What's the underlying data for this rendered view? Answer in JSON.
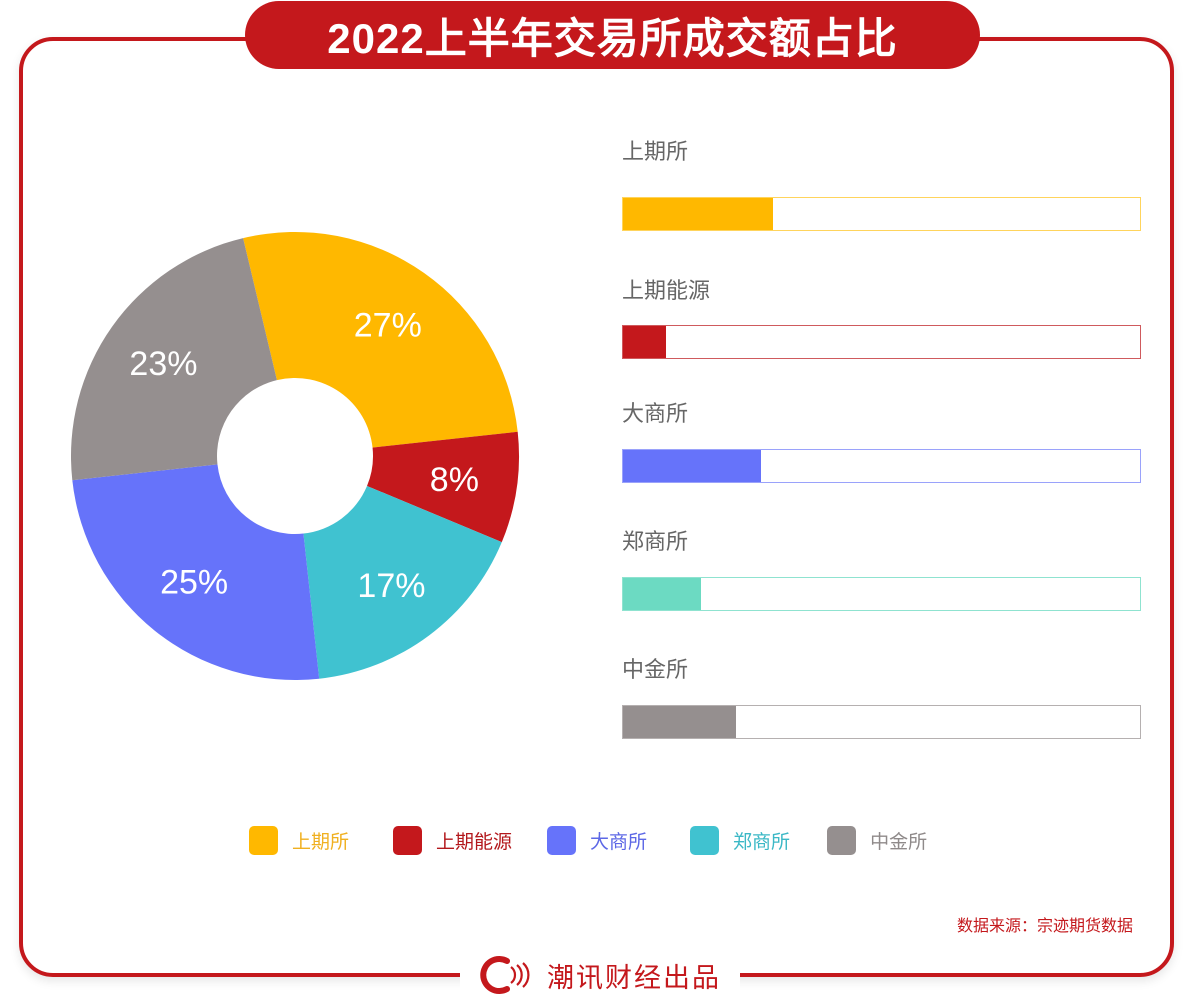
{
  "header": {
    "title": "2022上半年交易所成交额占比"
  },
  "colors": {
    "accent": "#c4181c",
    "shfe": "#ffb800",
    "ine": "#c4181c",
    "dce": "#6673fa",
    "czce_pie": "#40c2d0",
    "czce_bar": "#6cdac2",
    "cffex": "#958f8f"
  },
  "chart_data": [
    {
      "type": "pie",
      "subtype": "donut",
      "title": "2022上半年交易所成交额占比",
      "categories": [
        "上期所",
        "上期能源",
        "郑商所",
        "大商所",
        "中金所"
      ],
      "values": [
        27,
        8,
        17,
        25,
        23
      ],
      "labels": [
        "27%",
        "8%",
        "17%",
        "25%",
        "23%"
      ],
      "colors": [
        "#ffb800",
        "#c4181c",
        "#40c2d0",
        "#6673fa",
        "#958f8f"
      ],
      "start_angle_deg": -13.4,
      "direction": "clockwise",
      "legend_position": "bottom"
    },
    {
      "type": "bar",
      "orientation": "horizontal",
      "categories": [
        "上期所",
        "上期能源",
        "大商所",
        "郑商所",
        "中金所"
      ],
      "values": [
        29,
        8,
        27,
        15,
        22
      ],
      "xlim": [
        0,
        100
      ],
      "colors": [
        "#ffb800",
        "#c4181c",
        "#6673fa",
        "#6cdac2",
        "#958f8f"
      ]
    }
  ],
  "donut": {
    "slices": [
      {
        "name": "上期所",
        "value": 27,
        "label": "27%",
        "color": "#ffb800"
      },
      {
        "name": "上期能源",
        "value": 8,
        "label": "8%",
        "color": "#c4181c"
      },
      {
        "name": "郑商所",
        "value": 17,
        "label": "17%",
        "color": "#40c2d0"
      },
      {
        "name": "大商所",
        "value": 25,
        "label": "25%",
        "color": "#6673fa"
      },
      {
        "name": "中金所",
        "value": 23,
        "label": "23%",
        "color": "#958f8f"
      }
    ]
  },
  "bars": [
    {
      "label": "上期所",
      "fill_pct": 29,
      "color": "#ffb800",
      "border": "#ffd45c"
    },
    {
      "label": "上期能源",
      "fill_pct": 8.3,
      "color": "#c4181c",
      "border": "#cf5a5d"
    },
    {
      "label": "大商所",
      "fill_pct": 26.6,
      "color": "#6673fa",
      "border": "#9aa2fb"
    },
    {
      "label": "郑商所",
      "fill_pct": 15,
      "color": "#6cdac2",
      "border": "#8fe3d0"
    },
    {
      "label": "中金所",
      "fill_pct": 21.8,
      "color": "#958f8f",
      "border": "#b5b0b0"
    }
  ],
  "legend": [
    {
      "label": "上期所",
      "color": "#ffb800",
      "text_color": "#f0b020"
    },
    {
      "label": "上期能源",
      "color": "#c4181c",
      "text_color": "#b3181c"
    },
    {
      "label": "大商所",
      "color": "#6673fa",
      "text_color": "#5d68e6"
    },
    {
      "label": "郑商所",
      "color": "#40c2d0",
      "text_color": "#3bb8c6"
    },
    {
      "label": "中金所",
      "color": "#958f8f",
      "text_color": "#8f8a8a"
    }
  ],
  "source": "数据来源：宗迹期货数据",
  "footer": {
    "brand": "潮讯财经出品"
  }
}
